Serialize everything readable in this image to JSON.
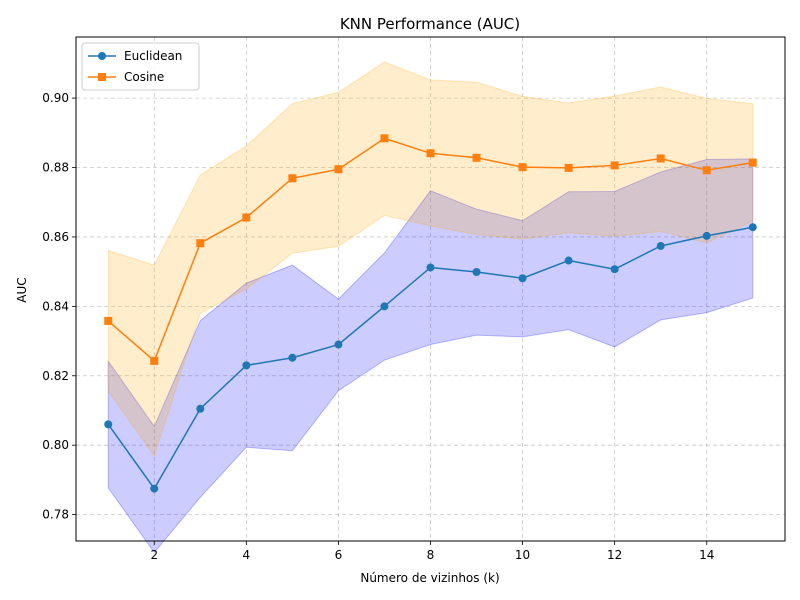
{
  "chart_data": {
    "type": "line",
    "title": "KNN Performance (AUC)",
    "xlabel": "Número de vizinhos (k)",
    "ylabel": "AUC",
    "xlim": [
      0.3,
      15.7
    ],
    "ylim": [
      0.7724,
      0.9176
    ],
    "xticks": [
      2,
      4,
      6,
      8,
      10,
      12,
      14
    ],
    "xtick_labels": [
      "2",
      "4",
      "6",
      "8",
      "10",
      "12",
      "14"
    ],
    "yticks": [
      0.78,
      0.8,
      0.82,
      0.84,
      0.86,
      0.88,
      0.9
    ],
    "ytick_labels": [
      "0.78",
      "0.80",
      "0.82",
      "0.84",
      "0.86",
      "0.88",
      "0.90"
    ],
    "grid": true,
    "legend_position": "top-left",
    "x": [
      1,
      2,
      3,
      4,
      5,
      6,
      7,
      8,
      9,
      10,
      11,
      12,
      13,
      14,
      15
    ],
    "series": [
      {
        "name": "Euclidean",
        "marker": "circle",
        "color": "#1f77b4",
        "band_color": "#0000ff",
        "values": [
          0.806,
          0.7875,
          0.8105,
          0.823,
          0.8252,
          0.829,
          0.84,
          0.8512,
          0.8499,
          0.8481,
          0.8532,
          0.8507,
          0.8574,
          0.8603,
          0.8628
        ],
        "lower": [
          0.7877,
          0.7691,
          0.785,
          0.7994,
          0.7984,
          0.8157,
          0.8245,
          0.829,
          0.8317,
          0.8312,
          0.8333,
          0.8283,
          0.8361,
          0.8382,
          0.8424
        ],
        "upper": [
          0.8242,
          0.8054,
          0.8359,
          0.8467,
          0.8519,
          0.8421,
          0.8554,
          0.8733,
          0.868,
          0.8647,
          0.873,
          0.8731,
          0.8787,
          0.8823,
          0.8825
        ]
      },
      {
        "name": "Cosine",
        "marker": "square",
        "color": "#ff7f0e",
        "band_color": "#ffa500",
        "values": [
          0.8358,
          0.8243,
          0.8582,
          0.8656,
          0.8769,
          0.8795,
          0.8884,
          0.8841,
          0.8828,
          0.8801,
          0.8799,
          0.8806,
          0.8826,
          0.8792,
          0.8814
        ],
        "lower": [
          0.8156,
          0.7969,
          0.838,
          0.845,
          0.8553,
          0.8573,
          0.8662,
          0.8632,
          0.8607,
          0.8594,
          0.8612,
          0.8602,
          0.8616,
          0.8583,
          0.8646
        ],
        "upper": [
          0.8561,
          0.8519,
          0.8778,
          0.8862,
          0.8984,
          0.9017,
          0.9104,
          0.9052,
          0.9046,
          0.9005,
          0.8986,
          0.9006,
          0.9032,
          0.8999,
          0.8984
        ]
      }
    ]
  }
}
